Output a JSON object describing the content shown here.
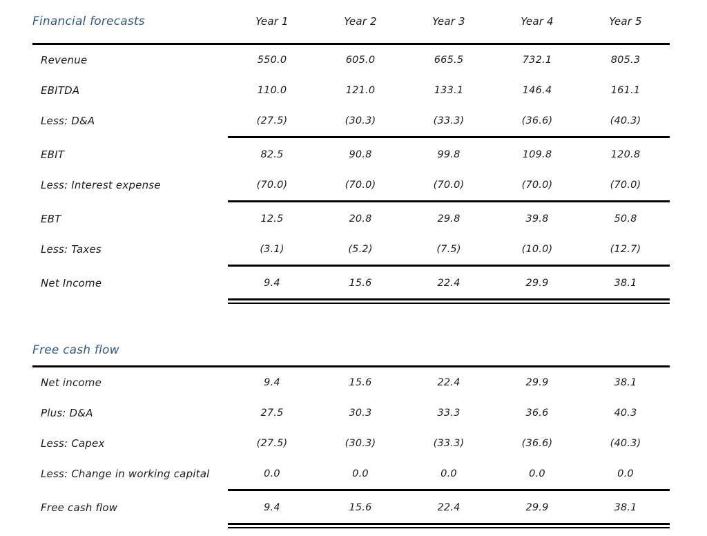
{
  "colors": {
    "title_blue": "#2f5884",
    "rule_black": "#000000",
    "text": "#1c1c1c",
    "background": "#ffffff"
  },
  "sections": [
    {
      "title": "Financial forecasts",
      "columns": [
        "Year 1",
        "Year 2",
        "Year 3",
        "Year 4",
        "Year 5"
      ],
      "rows": [
        {
          "label": "Revenue",
          "values": [
            "550.0",
            "605.0",
            "665.5",
            "732.1",
            "805.3"
          ]
        },
        {
          "label": "EBITDA",
          "values": [
            "110.0",
            "121.0",
            "133.1",
            "146.4",
            "161.1"
          ]
        },
        {
          "label": "Less: D&A",
          "values": [
            "(27.5)",
            "(30.3)",
            "(33.3)",
            "(36.6)",
            "(40.3)"
          ]
        },
        {
          "label": "EBIT",
          "values": [
            "82.5",
            "90.8",
            "99.8",
            "109.8",
            "120.8"
          ],
          "rule_above": "single"
        },
        {
          "label": "Less: Interest expense",
          "values": [
            "(70.0)",
            "(70.0)",
            "(70.0)",
            "(70.0)",
            "(70.0)"
          ]
        },
        {
          "label": "EBT",
          "values": [
            "12.5",
            "20.8",
            "29.8",
            "39.8",
            "50.8"
          ],
          "rule_above": "single"
        },
        {
          "label": "Less: Taxes",
          "values": [
            "(3.1)",
            "(5.2)",
            "(7.5)",
            "(10.0)",
            "(12.7)"
          ]
        },
        {
          "label": "Net Income",
          "values": [
            "9.4",
            "15.6",
            "22.4",
            "29.9",
            "38.1"
          ],
          "rule_above": "single",
          "rule_below": "double"
        }
      ]
    },
    {
      "title": "Free cash flow",
      "rows": [
        {
          "label": "Net income",
          "values": [
            "9.4",
            "15.6",
            "22.4",
            "29.9",
            "38.1"
          ]
        },
        {
          "label": "Plus: D&A",
          "values": [
            "27.5",
            "30.3",
            "33.3",
            "36.6",
            "40.3"
          ]
        },
        {
          "label": "Less: Capex",
          "values": [
            "(27.5)",
            "(30.3)",
            "(33.3)",
            "(36.6)",
            "(40.3)"
          ]
        },
        {
          "label": "Less: Change in working capital",
          "values": [
            "0.0",
            "0.0",
            "0.0",
            "0.0",
            "0.0"
          ]
        },
        {
          "label": "Free cash flow",
          "values": [
            "9.4",
            "15.6",
            "22.4",
            "29.9",
            "38.1"
          ],
          "rule_above": "single",
          "rule_below": "double"
        }
      ]
    }
  ]
}
